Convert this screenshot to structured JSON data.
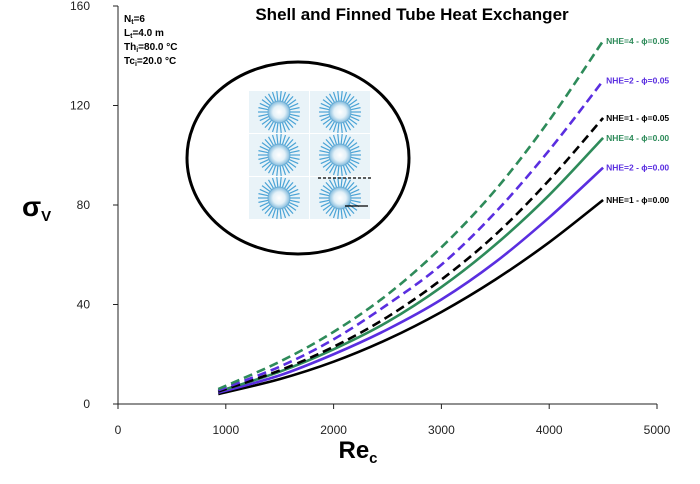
{
  "chart_data": {
    "type": "line",
    "title": "Shell and Finned Tube Heat Exchanger",
    "parameters": [
      "Nt=6",
      "Lt=4.0 m",
      "Thi=80.0 °C",
      "Tci=20.0 °C"
    ],
    "xlabel": "Re",
    "xlabel_sub": "c",
    "ylabel": "σ",
    "ylabel_sub": "V",
    "xlim": [
      0,
      5000
    ],
    "ylim": [
      0,
      160
    ],
    "x_ticks": [
      0,
      1000,
      2000,
      3000,
      4000,
      5000
    ],
    "y_ticks": [
      0,
      40,
      80,
      120,
      160
    ],
    "x": [
      930,
      1500,
      2000,
      2500,
      3000,
      3500,
      4000,
      4500
    ],
    "series": [
      {
        "name": "NHE=1 - ϕ=0.00",
        "color": "#000000",
        "dash": false,
        "values": [
          4,
          10,
          17,
          26,
          37,
          50,
          65,
          82
        ]
      },
      {
        "name": "NHE=2 - ϕ=0.00",
        "color": "#5a2ee0",
        "dash": false,
        "values": [
          4.5,
          11.5,
          20,
          30,
          42,
          57,
          75,
          95
        ]
      },
      {
        "name": "NHE=4 - ϕ=0.00",
        "color": "#2e8b5a",
        "dash": false,
        "values": [
          5,
          13,
          22,
          33,
          47,
          64,
          84,
          107
        ]
      },
      {
        "name": "NHE=1 - ϕ=0.05",
        "color": "#000000",
        "dash": true,
        "values": [
          5,
          13.5,
          23,
          35,
          50,
          68,
          90,
          115
        ]
      },
      {
        "name": "NHE=2 - ϕ=0.05",
        "color": "#5a2ee0",
        "dash": true,
        "values": [
          5.5,
          15,
          26,
          40,
          56,
          77,
          102,
          130
        ]
      },
      {
        "name": "NHE=4 - ϕ=0.05",
        "color": "#2e8b5a",
        "dash": true,
        "values": [
          6,
          17,
          29,
          44,
          63,
          86,
          114,
          146
        ]
      }
    ],
    "grid": false,
    "legend": "inline labels at right end of curves"
  }
}
